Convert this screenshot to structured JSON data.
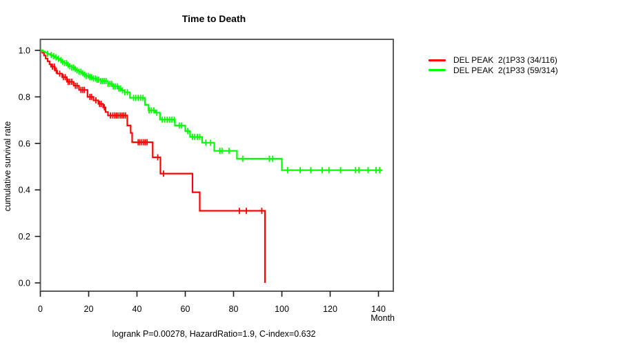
{
  "title": "Time to Death",
  "footer": "logrank P=0.00278, HazardRatio=1.9, C-index=0.632",
  "axes": {
    "x": {
      "label": "Month",
      "ticks": [
        0,
        20,
        40,
        60,
        80,
        100,
        120,
        140
      ]
    },
    "y": {
      "label": "cumulative survival rate",
      "ticks": [
        "0.0",
        "0.2",
        "0.4",
        "0.6",
        "0.8",
        "1.0"
      ]
    }
  },
  "legend": {
    "items": [
      {
        "label": "DEL PEAK  2(1P33 (34/116)",
        "color": "#ff0000"
      },
      {
        "label": "DEL PEAK  2(1P33 (59/314)",
        "color": "#00ff00"
      }
    ]
  },
  "chart_data": {
    "type": "line",
    "variant": "kaplan-meier-step",
    "title": "Time to Death",
    "xlabel": "Month",
    "ylabel": "cumulative survival rate",
    "xlim": [
      0,
      146
    ],
    "ylim": [
      0.0,
      1.0
    ],
    "grid": false,
    "legend_position": "right-outside",
    "annotation": "logrank P=0.00278, HazardRatio=1.9, C-index=0.632",
    "series": [
      {
        "name": "DEL PEAK  2(1P33 (34/116)",
        "color": "#ff0000",
        "events_over_n": "34/116",
        "steps": [
          [
            0,
            1.0
          ],
          [
            0.8,
            0.99
          ],
          [
            1.5,
            0.978
          ],
          [
            2.2,
            0.965
          ],
          [
            3,
            0.953
          ],
          [
            3.8,
            0.94
          ],
          [
            4.4,
            0.93
          ],
          [
            6,
            0.913
          ],
          [
            7,
            0.9
          ],
          [
            9,
            0.885
          ],
          [
            11,
            0.865
          ],
          [
            13.8,
            0.848
          ],
          [
            16,
            0.83
          ],
          [
            19.5,
            0.8
          ],
          [
            22,
            0.785
          ],
          [
            24,
            0.77
          ],
          [
            26,
            0.755
          ],
          [
            27,
            0.735
          ],
          [
            28,
            0.72
          ],
          [
            36,
            0.677
          ],
          [
            37.4,
            0.645
          ],
          [
            38,
            0.605
          ],
          [
            46.5,
            0.54
          ],
          [
            49.7,
            0.47
          ],
          [
            63,
            0.39
          ],
          [
            66,
            0.31
          ],
          [
            93,
            0.0
          ]
        ],
        "censor_times": [
          5,
          5.8,
          6.6,
          8,
          9.5,
          10.3,
          11.5,
          12.2,
          13,
          14.5,
          15.2,
          16.8,
          17.5,
          18.2,
          20.5,
          21.2,
          23,
          24.5,
          25.2,
          26.5,
          29,
          30,
          30.8,
          31.5,
          32.2,
          33,
          33.8,
          34.5,
          35.2,
          40.5,
          41.2,
          42,
          42.8,
          43.5,
          44.2,
          48.6,
          51,
          82.4,
          85.3,
          91.7
        ]
      },
      {
        "name": "DEL PEAK  2(1P33 (59/314)",
        "color": "#00ff00",
        "events_over_n": "59/314",
        "steps": [
          [
            0,
            1.0
          ],
          [
            1,
            0.995
          ],
          [
            2,
            0.99
          ],
          [
            3,
            0.985
          ],
          [
            4,
            0.98
          ],
          [
            5,
            0.975
          ],
          [
            6,
            0.97
          ],
          [
            7,
            0.964
          ],
          [
            8,
            0.958
          ],
          [
            9,
            0.951
          ],
          [
            10,
            0.945
          ],
          [
            11,
            0.938
          ],
          [
            12,
            0.932
          ],
          [
            13,
            0.926
          ],
          [
            14,
            0.92
          ],
          [
            15,
            0.914
          ],
          [
            16,
            0.908
          ],
          [
            17,
            0.902
          ],
          [
            18,
            0.896
          ],
          [
            19,
            0.89
          ],
          [
            20,
            0.885
          ],
          [
            21.5,
            0.879
          ],
          [
            23,
            0.874
          ],
          [
            25,
            0.868
          ],
          [
            28,
            0.856
          ],
          [
            30,
            0.845
          ],
          [
            32,
            0.836
          ],
          [
            33.5,
            0.828
          ],
          [
            34.8,
            0.82
          ],
          [
            37.1,
            0.796
          ],
          [
            43.3,
            0.766
          ],
          [
            44.8,
            0.742
          ],
          [
            47.6,
            0.732
          ],
          [
            49.5,
            0.702
          ],
          [
            55.7,
            0.677
          ],
          [
            60,
            0.653
          ],
          [
            62,
            0.628
          ],
          [
            67,
            0.603
          ],
          [
            72,
            0.568
          ],
          [
            81.4,
            0.534
          ],
          [
            100,
            0.485
          ],
          [
            141.7,
            0.485
          ]
        ],
        "censor_times": [
          3,
          4.5,
          5.5,
          6.5,
          7.5,
          8.5,
          9.2,
          10,
          10.8,
          11.5,
          12.2,
          13,
          13.8,
          14.5,
          15.2,
          16,
          16.8,
          17.5,
          18.2,
          19,
          19.8,
          20.5,
          21.2,
          22,
          22.8,
          23.5,
          24.2,
          25,
          25.8,
          26.5,
          27.2,
          28,
          28.8,
          29.5,
          30.2,
          31,
          31.8,
          32.5,
          33.2,
          34,
          35,
          36,
          38.6,
          39.5,
          40.5,
          41.5,
          42.5,
          45,
          46,
          47,
          48.2,
          50.5,
          51.5,
          52.5,
          53.5,
          54.5,
          55.4,
          57.5,
          58.5,
          61,
          63,
          63.8,
          65,
          66,
          68.5,
          70.5,
          74.3,
          75.2,
          78.1,
          83.8,
          94.8,
          96.2,
          102.4,
          107.6,
          112,
          116.7,
          119.5,
          124.3,
          130.5,
          131.9,
          135.7,
          139,
          140.5
        ]
      }
    ]
  }
}
